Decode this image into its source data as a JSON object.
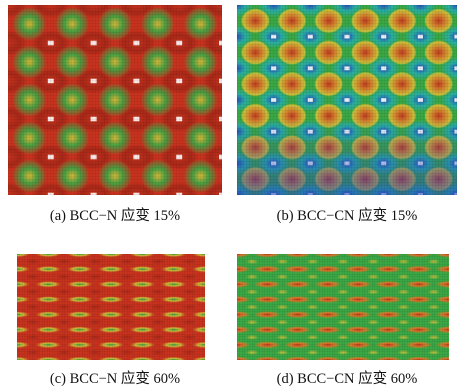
{
  "figure": {
    "panels": [
      {
        "id": "a",
        "caption": "(a) BCC−N 应变 15%"
      },
      {
        "id": "b",
        "caption": "(b) BCC−CN 应变 15%"
      },
      {
        "id": "c",
        "caption": "(c) BCC−N 应变 60%"
      },
      {
        "id": "d",
        "caption": "(d) BCC−CN 应变 60%"
      }
    ]
  },
  "colors": {
    "red": "#c8321e",
    "orange": "#e07a2a",
    "yellow": "#d8c23a",
    "green": "#3aa845",
    "cyan": "#28b0a8",
    "blue": "#2848c0",
    "dark": "#1c1c1c"
  }
}
